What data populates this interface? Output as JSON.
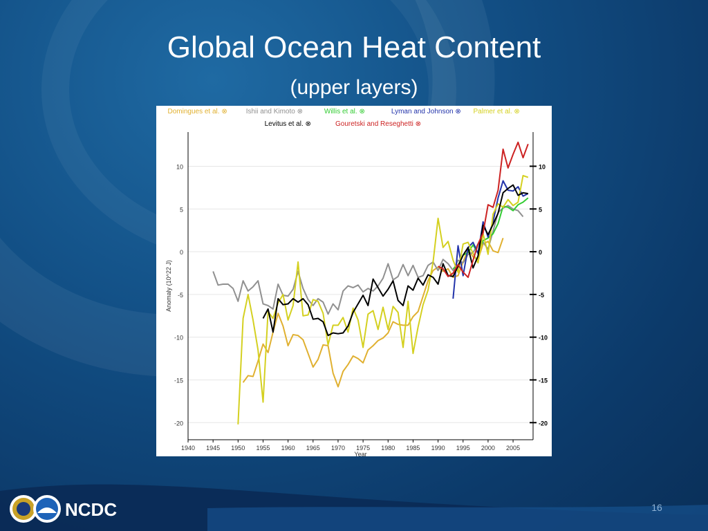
{
  "slide": {
    "title": "Global Ocean Heat Content",
    "subtitle": "(upper layers)",
    "page_number": "16",
    "logo_text": "NCDC"
  },
  "chart_data": {
    "type": "line",
    "xlabel": "Year",
    "ylabel": "Anomaly (10^22 J)",
    "xlim": [
      1940,
      2009
    ],
    "ylim": [
      -22,
      14
    ],
    "xticks": [
      1940,
      1945,
      1950,
      1955,
      1960,
      1965,
      1970,
      1975,
      1980,
      1985,
      1990,
      1995,
      2000,
      2005
    ],
    "yticks": [
      -20,
      -15,
      -10,
      -5,
      0,
      5,
      10
    ],
    "grid": true,
    "legend_position": "top",
    "legend_marker": "⊗",
    "series": [
      {
        "name": "Domingues et al.",
        "color": "#e0b030",
        "x": [
          1951,
          1952,
          1953,
          1954,
          1955,
          1956,
          1957,
          1958,
          1959,
          1960,
          1961,
          1962,
          1963,
          1964,
          1965,
          1966,
          1967,
          1968,
          1969,
          1970,
          1971,
          1972,
          1973,
          1974,
          1975,
          1976,
          1977,
          1978,
          1979,
          1980,
          1981,
          1982,
          1983,
          1984,
          1985,
          1986,
          1987,
          1988,
          1989,
          1990,
          1991,
          1992,
          1993,
          1994,
          1995,
          1996,
          1997,
          1998,
          1999,
          2000,
          2001,
          2002,
          2003
        ],
        "y": [
          -15.3,
          -14.5,
          -14.6,
          -12.8,
          -10.8,
          -11.8,
          -9.4,
          -7.2,
          -8.7,
          -11,
          -9.7,
          -9.8,
          -10.3,
          -11.9,
          -13.5,
          -12.6,
          -10.9,
          -11,
          -14.2,
          -15.8,
          -14,
          -13.2,
          -12.2,
          -12.5,
          -13,
          -11.5,
          -11,
          -10.4,
          -10.1,
          -9.5,
          -8.2,
          -8.5,
          -8.6,
          -8.6,
          -7.6,
          -7,
          -5.2,
          -3.4,
          -2.2,
          -1.8,
          -2.3,
          -2,
          -3,
          -2.8,
          -1.2,
          0.3,
          -0.6,
          -0.9,
          0.9,
          1.2,
          0.1,
          -0.1,
          1.6
        ]
      },
      {
        "name": "Ishii and Kimoto",
        "color": "#909090",
        "x": [
          1945,
          1946,
          1947,
          1948,
          1949,
          1950,
          1951,
          1952,
          1953,
          1954,
          1955,
          1956,
          1957,
          1958,
          1959,
          1960,
          1961,
          1962,
          1963,
          1964,
          1965,
          1966,
          1967,
          1968,
          1969,
          1970,
          1971,
          1972,
          1973,
          1974,
          1975,
          1976,
          1977,
          1978,
          1979,
          1980,
          1981,
          1982,
          1983,
          1984,
          1985,
          1986,
          1987,
          1988,
          1989,
          1990,
          1991,
          1992,
          1993,
          1994,
          1995,
          1996,
          1997,
          1998,
          1999,
          2000,
          2001,
          2002,
          2003,
          2004,
          2005,
          2006,
          2007
        ],
        "y": [
          -2.3,
          -3.9,
          -3.8,
          -3.8,
          -4.3,
          -5.8,
          -3.4,
          -4.6,
          -4.1,
          -3.4,
          -6.1,
          -6.3,
          -6.7,
          -3.8,
          -5.1,
          -5.2,
          -4.4,
          -2.3,
          -4.3,
          -5.6,
          -6.3,
          -5.5,
          -5.9,
          -7.3,
          -6.1,
          -6.8,
          -4.6,
          -4,
          -4.2,
          -3.9,
          -4.7,
          -4.3,
          -4.6,
          -4,
          -3.1,
          -1.4,
          -3.3,
          -2.9,
          -1.5,
          -2.8,
          -1.6,
          -3,
          -2.8,
          -1.6,
          -1.2,
          -2.2,
          -0.9,
          -1.4,
          -2.2,
          -1,
          -1.3,
          -0.3,
          -0.1,
          0.9,
          1.1,
          0.3,
          2.4,
          4.6,
          5.1,
          5.4,
          5,
          4.8,
          4.1
        ]
      },
      {
        "name": "Willis et al.",
        "color": "#33cc33",
        "x": [
          1993,
          1994,
          1995,
          1996,
          1997,
          1998,
          1999,
          2000,
          2001,
          2002,
          2003,
          2004,
          2005,
          2006,
          2007,
          2008
        ],
        "y": [
          -2,
          -1.6,
          -0.4,
          -0.1,
          0.8,
          -0.2,
          1.3,
          1.6,
          2.1,
          3.3,
          5.3,
          5.2,
          4.8,
          5.5,
          5.8,
          6.3
        ]
      },
      {
        "name": "Lyman and Johnson",
        "color": "#2233aa",
        "x": [
          1993,
          1994,
          1995,
          1996,
          1997,
          1998,
          1999,
          2000,
          2001,
          2002,
          2003,
          2004,
          2005,
          2006,
          2007,
          2008
        ],
        "y": [
          -5.5,
          0.7,
          -2.8,
          0.5,
          1.1,
          -0.2,
          3.5,
          1.7,
          3.5,
          6.3,
          8.3,
          7.2,
          7.1,
          7.6,
          6.5,
          6.8
        ]
      },
      {
        "name": "Palmer et al.",
        "color": "#d4d020",
        "x": [
          1950,
          1951,
          1952,
          1953,
          1954,
          1955,
          1956,
          1957,
          1958,
          1959,
          1960,
          1961,
          1962,
          1963,
          1964,
          1965,
          1966,
          1967,
          1968,
          1969,
          1970,
          1971,
          1972,
          1973,
          1974,
          1975,
          1976,
          1977,
          1978,
          1979,
          1980,
          1981,
          1982,
          1983,
          1984,
          1985,
          1986,
          1987,
          1988,
          1989,
          1990,
          1991,
          1992,
          1993,
          1994,
          1995,
          1996,
          1997,
          1998,
          1999,
          2000,
          2001,
          2002,
          2003,
          2004,
          2005,
          2006,
          2007,
          2008
        ],
        "y": [
          -20.2,
          -7.8,
          -5,
          -8,
          -11.5,
          -17.6,
          -7,
          -7.8,
          -6,
          -5,
          -8,
          -6.3,
          -1.2,
          -7.5,
          -7.4,
          -5.6,
          -5.8,
          -7.2,
          -10.9,
          -8.6,
          -8.6,
          -7.7,
          -9.4,
          -6.6,
          -8,
          -11.2,
          -7.3,
          -6.9,
          -9.1,
          -6.5,
          -9.1,
          -6.4,
          -7.1,
          -11.2,
          -5.8,
          -11.9,
          -8.8,
          -6.2,
          -4.5,
          -1.2,
          3.9,
          0.5,
          1.2,
          -1,
          -2.4,
          0.9,
          1.1,
          -0.2,
          -1.3,
          2.1,
          -0.3,
          4.4,
          5.6,
          5.2,
          6.1,
          5.4,
          5.8,
          8.9,
          8.7
        ]
      },
      {
        "name": "Levitus et al.",
        "color": "#000000",
        "x": [
          1955,
          1956,
          1957,
          1958,
          1959,
          1960,
          1961,
          1962,
          1963,
          1964,
          1965,
          1966,
          1967,
          1968,
          1969,
          1970,
          1971,
          1972,
          1973,
          1974,
          1975,
          1976,
          1977,
          1978,
          1979,
          1980,
          1981,
          1982,
          1983,
          1984,
          1985,
          1986,
          1987,
          1988,
          1989,
          1990,
          1991,
          1992,
          1993,
          1994,
          1995,
          1996,
          1997,
          1998,
          1999,
          2000,
          2001,
          2002,
          2003,
          2004,
          2005,
          2006,
          2007,
          2008
        ],
        "y": [
          -7.8,
          -6.7,
          -9.4,
          -5.5,
          -6.2,
          -6.1,
          -5.5,
          -5.9,
          -5.5,
          -6.2,
          -7.9,
          -7.8,
          -8.2,
          -9.8,
          -9.5,
          -9.6,
          -9.5,
          -8.7,
          -7.1,
          -6.1,
          -5.1,
          -6.3,
          -3.2,
          -4.2,
          -5.2,
          -4.4,
          -3.4,
          -5.7,
          -6.3,
          -4,
          -4.5,
          -3.1,
          -3.9,
          -2.7,
          -3,
          -3.8,
          -1.4,
          -2.8,
          -2.9,
          -1.7,
          -0.4,
          0.5,
          -1.9,
          -0.5,
          3.1,
          2,
          3.2,
          4.5,
          6.9,
          7.4,
          7.8,
          6.6,
          6.9,
          6.8
        ]
      },
      {
        "name": "Gouretski and Reseghetti",
        "color": "#cc2222",
        "x": [
          1990,
          1991,
          1992,
          1993,
          1994,
          1995,
          1996,
          1997,
          1998,
          1999,
          2000,
          2001,
          2002,
          2003,
          2004,
          2005,
          2006,
          2007,
          2008
        ],
        "y": [
          -1.7,
          -2,
          -2.9,
          -2.5,
          -1.5,
          -2.4,
          -3,
          -1,
          0.9,
          2.2,
          5.5,
          5.2,
          7.2,
          12,
          9.8,
          11.4,
          12.8,
          11,
          12.6
        ]
      }
    ]
  }
}
